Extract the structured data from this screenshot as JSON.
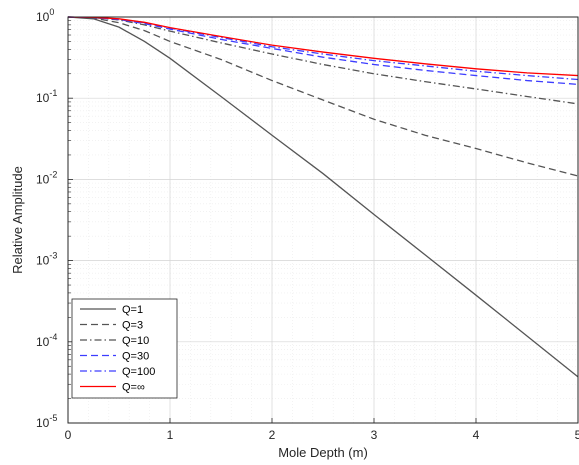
{
  "chart_data": {
    "type": "line",
    "title": "",
    "xlabel": "Mole Depth (m)",
    "ylabel": "Relative Amplitude",
    "xlim": [
      0,
      5
    ],
    "ylim": [
      1e-05,
      1
    ],
    "yscale": "log",
    "grid": true,
    "minor_grid": true,
    "legend_position": "bottom-left",
    "x_ticks": [
      "0",
      "1",
      "2",
      "3",
      "4",
      "5"
    ],
    "y_ticks": [
      {
        "base": "10",
        "exp": "0",
        "value": 1
      },
      {
        "base": "10",
        "exp": "-1",
        "value": 0.1
      },
      {
        "base": "10",
        "exp": "-2",
        "value": 0.01
      },
      {
        "base": "10",
        "exp": "-3",
        "value": 0.001
      },
      {
        "base": "10",
        "exp": "-4",
        "value": 0.0001
      },
      {
        "base": "10",
        "exp": "-5",
        "value": 1e-05
      }
    ],
    "x": [
      0,
      0.25,
      0.5,
      0.75,
      1,
      1.5,
      2,
      2.5,
      3,
      3.5,
      4,
      4.5,
      5
    ],
    "series": [
      {
        "name": "Q=1",
        "color": "#555555",
        "dash": "solid",
        "values": [
          1,
          0.95,
          0.75,
          0.5,
          0.31,
          0.105,
          0.035,
          0.0118,
          0.0037,
          0.00118,
          0.000375,
          0.000118,
          3.7e-05
        ]
      },
      {
        "name": "Q=3",
        "color": "#555555",
        "dash": "dashed",
        "values": [
          1,
          0.97,
          0.85,
          0.68,
          0.5,
          0.3,
          0.165,
          0.095,
          0.055,
          0.035,
          0.024,
          0.016,
          0.011
        ]
      },
      {
        "name": "Q=10",
        "color": "#555555",
        "dash": "dashdot",
        "values": [
          1,
          0.98,
          0.92,
          0.8,
          0.67,
          0.48,
          0.35,
          0.26,
          0.2,
          0.16,
          0.13,
          0.105,
          0.085
        ]
      },
      {
        "name": "Q=30",
        "color": "#3d3dff",
        "dash": "dashed",
        "values": [
          1,
          0.985,
          0.93,
          0.83,
          0.71,
          0.53,
          0.41,
          0.32,
          0.26,
          0.22,
          0.19,
          0.165,
          0.148
        ]
      },
      {
        "name": "Q=100",
        "color": "#3d3dff",
        "dash": "dashdot",
        "values": [
          1,
          0.99,
          0.94,
          0.85,
          0.73,
          0.56,
          0.43,
          0.35,
          0.29,
          0.25,
          0.215,
          0.19,
          0.17
        ]
      },
      {
        "name": "Q=∞",
        "color": "#ff0000",
        "dash": "solid",
        "values": [
          1,
          0.99,
          0.95,
          0.86,
          0.74,
          0.575,
          0.45,
          0.37,
          0.31,
          0.265,
          0.23,
          0.205,
          0.19
        ]
      }
    ]
  }
}
